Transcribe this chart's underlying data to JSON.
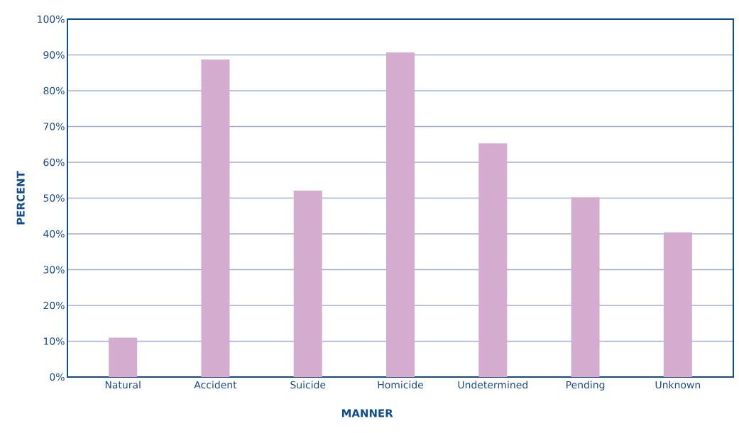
{
  "chart_data": {
    "type": "bar",
    "xlabel": "MANNER",
    "ylabel": "PERCENT",
    "categories": [
      "Natural",
      "Accident",
      "Suicide",
      "Homicide",
      "Undetermined",
      "Pending",
      "Unknown"
    ],
    "values": [
      11.0,
      88.7,
      52.1,
      90.7,
      65.3,
      50.2,
      40.4
    ],
    "color": "#d4acd0",
    "ylim": [
      0,
      100
    ],
    "yticks": [
      {
        "value": 0,
        "label": "0%"
      },
      {
        "value": 10,
        "label": "10%"
      },
      {
        "value": 20,
        "label": "20%"
      },
      {
        "value": 30,
        "label": "30%"
      },
      {
        "value": 40,
        "label": "40%"
      },
      {
        "value": 50,
        "label": "50%"
      },
      {
        "value": 60,
        "label": "60%"
      },
      {
        "value": 70,
        "label": "70%"
      },
      {
        "value": 80,
        "label": "80%"
      },
      {
        "value": 90,
        "label": "90%"
      },
      {
        "value": 100,
        "label": "100%"
      }
    ],
    "grid": "y"
  }
}
